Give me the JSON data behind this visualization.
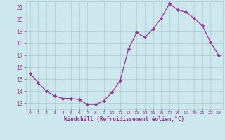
{
  "x": [
    0,
    1,
    2,
    3,
    4,
    5,
    6,
    7,
    8,
    9,
    10,
    11,
    12,
    13,
    14,
    15,
    16,
    17,
    18,
    19,
    20,
    21,
    22,
    23
  ],
  "y": [
    15.5,
    14.7,
    14.0,
    13.6,
    13.4,
    13.4,
    13.3,
    12.9,
    12.9,
    13.2,
    13.9,
    14.9,
    17.5,
    18.9,
    18.5,
    19.2,
    20.1,
    21.3,
    20.8,
    20.6,
    20.1,
    19.5,
    18.1,
    17.0
  ],
  "line_color": "#993399",
  "marker": "D",
  "marker_size": 2.2,
  "bg_color": "#cce8ee",
  "grid_color": "#aacccc",
  "xlabel": "Windchill (Refroidissement éolien,°C)",
  "xlabel_color": "#993399",
  "tick_color": "#993399",
  "ylim": [
    12.5,
    21.5
  ],
  "xlim": [
    -0.5,
    23.5
  ],
  "yticks": [
    13,
    14,
    15,
    16,
    17,
    18,
    19,
    20,
    21
  ],
  "xticks": [
    0,
    1,
    2,
    3,
    4,
    5,
    6,
    7,
    8,
    9,
    10,
    11,
    12,
    13,
    14,
    15,
    16,
    17,
    18,
    19,
    20,
    21,
    22,
    23
  ]
}
